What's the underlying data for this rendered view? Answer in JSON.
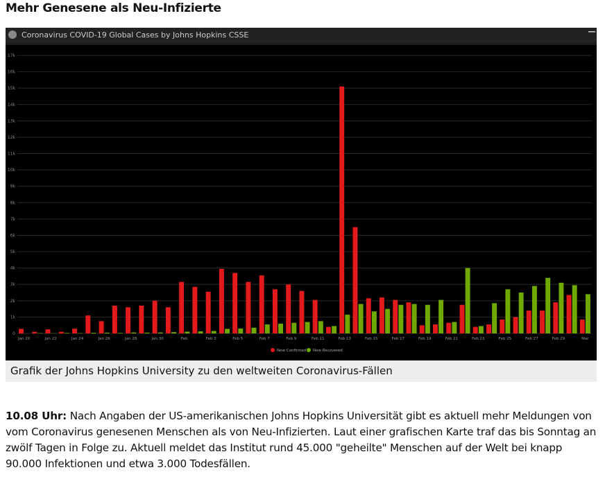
{
  "header": {
    "title": "Mehr Genesene als Neu-Infizierte"
  },
  "chart_data": {
    "type": "bar",
    "title": "Coronavirus COVID-19 Global Cases by Johns Hopkins CSSE",
    "categories": [
      "Jan 20",
      null,
      "Jan 22",
      null,
      "Jan 24",
      null,
      "Jan 26",
      null,
      "Jan 28",
      null,
      "Jan 30",
      null,
      "Feb",
      null,
      "Feb 3",
      null,
      "Feb 5",
      null,
      "Feb 7",
      null,
      "Feb 9",
      null,
      "Feb 11",
      null,
      "Feb 13",
      null,
      "Feb 15",
      null,
      "Feb 17",
      null,
      "Feb 19",
      null,
      "Feb 21",
      null,
      "Feb 23",
      null,
      "Feb 25",
      null,
      "Feb 27",
      null,
      "Feb 29",
      null,
      "Mar"
    ],
    "series": [
      {
        "name": "New Confirmed",
        "color": "#e31a1c",
        "values": [
          280,
          100,
          250,
          100,
          290,
          1100,
          750,
          1700,
          1600,
          1700,
          2000,
          1600,
          3150,
          2850,
          2550,
          3950,
          3700,
          3150,
          3550,
          2700,
          3000,
          2600,
          2050,
          400,
          15100,
          6500,
          2150,
          2200,
          2050,
          1900,
          500,
          550,
          650,
          1750,
          400,
          550,
          850,
          1000,
          1400,
          1400,
          1900,
          2350,
          850
        ]
      },
      {
        "name": "New Recovered",
        "color": "#70a800",
        "values": [
          0,
          20,
          10,
          30,
          20,
          40,
          50,
          30,
          60,
          50,
          60,
          80,
          110,
          130,
          150,
          280,
          300,
          350,
          550,
          600,
          650,
          700,
          750,
          450,
          1150,
          1800,
          1350,
          1500,
          1750,
          1800,
          1750,
          2050,
          700,
          4000,
          450,
          1850,
          2700,
          2500,
          2900,
          3400,
          3100,
          2950,
          2400
        ]
      }
    ],
    "ylim": [
      0,
      17000
    ],
    "yticks": [
      0,
      {
        "value": 1000,
        "label": "1k"
      },
      {
        "value": 2000,
        "label": "2k"
      },
      {
        "value": 3000,
        "label": "3k"
      },
      {
        "value": 4000,
        "label": "4k"
      },
      {
        "value": 5000,
        "label": "5k"
      },
      {
        "value": 6000,
        "label": "6k"
      },
      {
        "value": 7000,
        "label": "7k"
      },
      {
        "value": 8000,
        "label": "8k"
      },
      {
        "value": 9000,
        "label": "9k"
      },
      {
        "value": 10000,
        "label": "10k"
      },
      {
        "value": 11000,
        "label": "11k"
      },
      {
        "value": 12000,
        "label": "12k"
      },
      {
        "value": 13000,
        "label": "13k"
      },
      {
        "value": 14000,
        "label": "14k"
      },
      {
        "value": 15000,
        "label": "15k"
      },
      {
        "value": 16000,
        "label": "16k"
      },
      {
        "value": 17000,
        "label": "17k"
      }
    ],
    "grid": true,
    "legend": "bottom"
  },
  "caption": "Grafik der Johns Hopkins University zu den weltweiten Coronavirus-Fällen",
  "article": {
    "time": "10.08 Uhr:",
    "text": "Nach Angaben der US-amerikanischen Johns Hopkins Universität gibt es aktuell mehr Meldungen von vom Coronavirus genesenen Menschen als von Neu-Infizierten. Laut einer grafischen Karte traf das bis Sonntag an zwölf Tagen in Folge zu. Aktuell meldet das Institut rund 45.000 \"geheilte\" Menschen auf der Welt bei knapp 90.000 Infektionen und etwa 3.000 Todesfällen."
  }
}
